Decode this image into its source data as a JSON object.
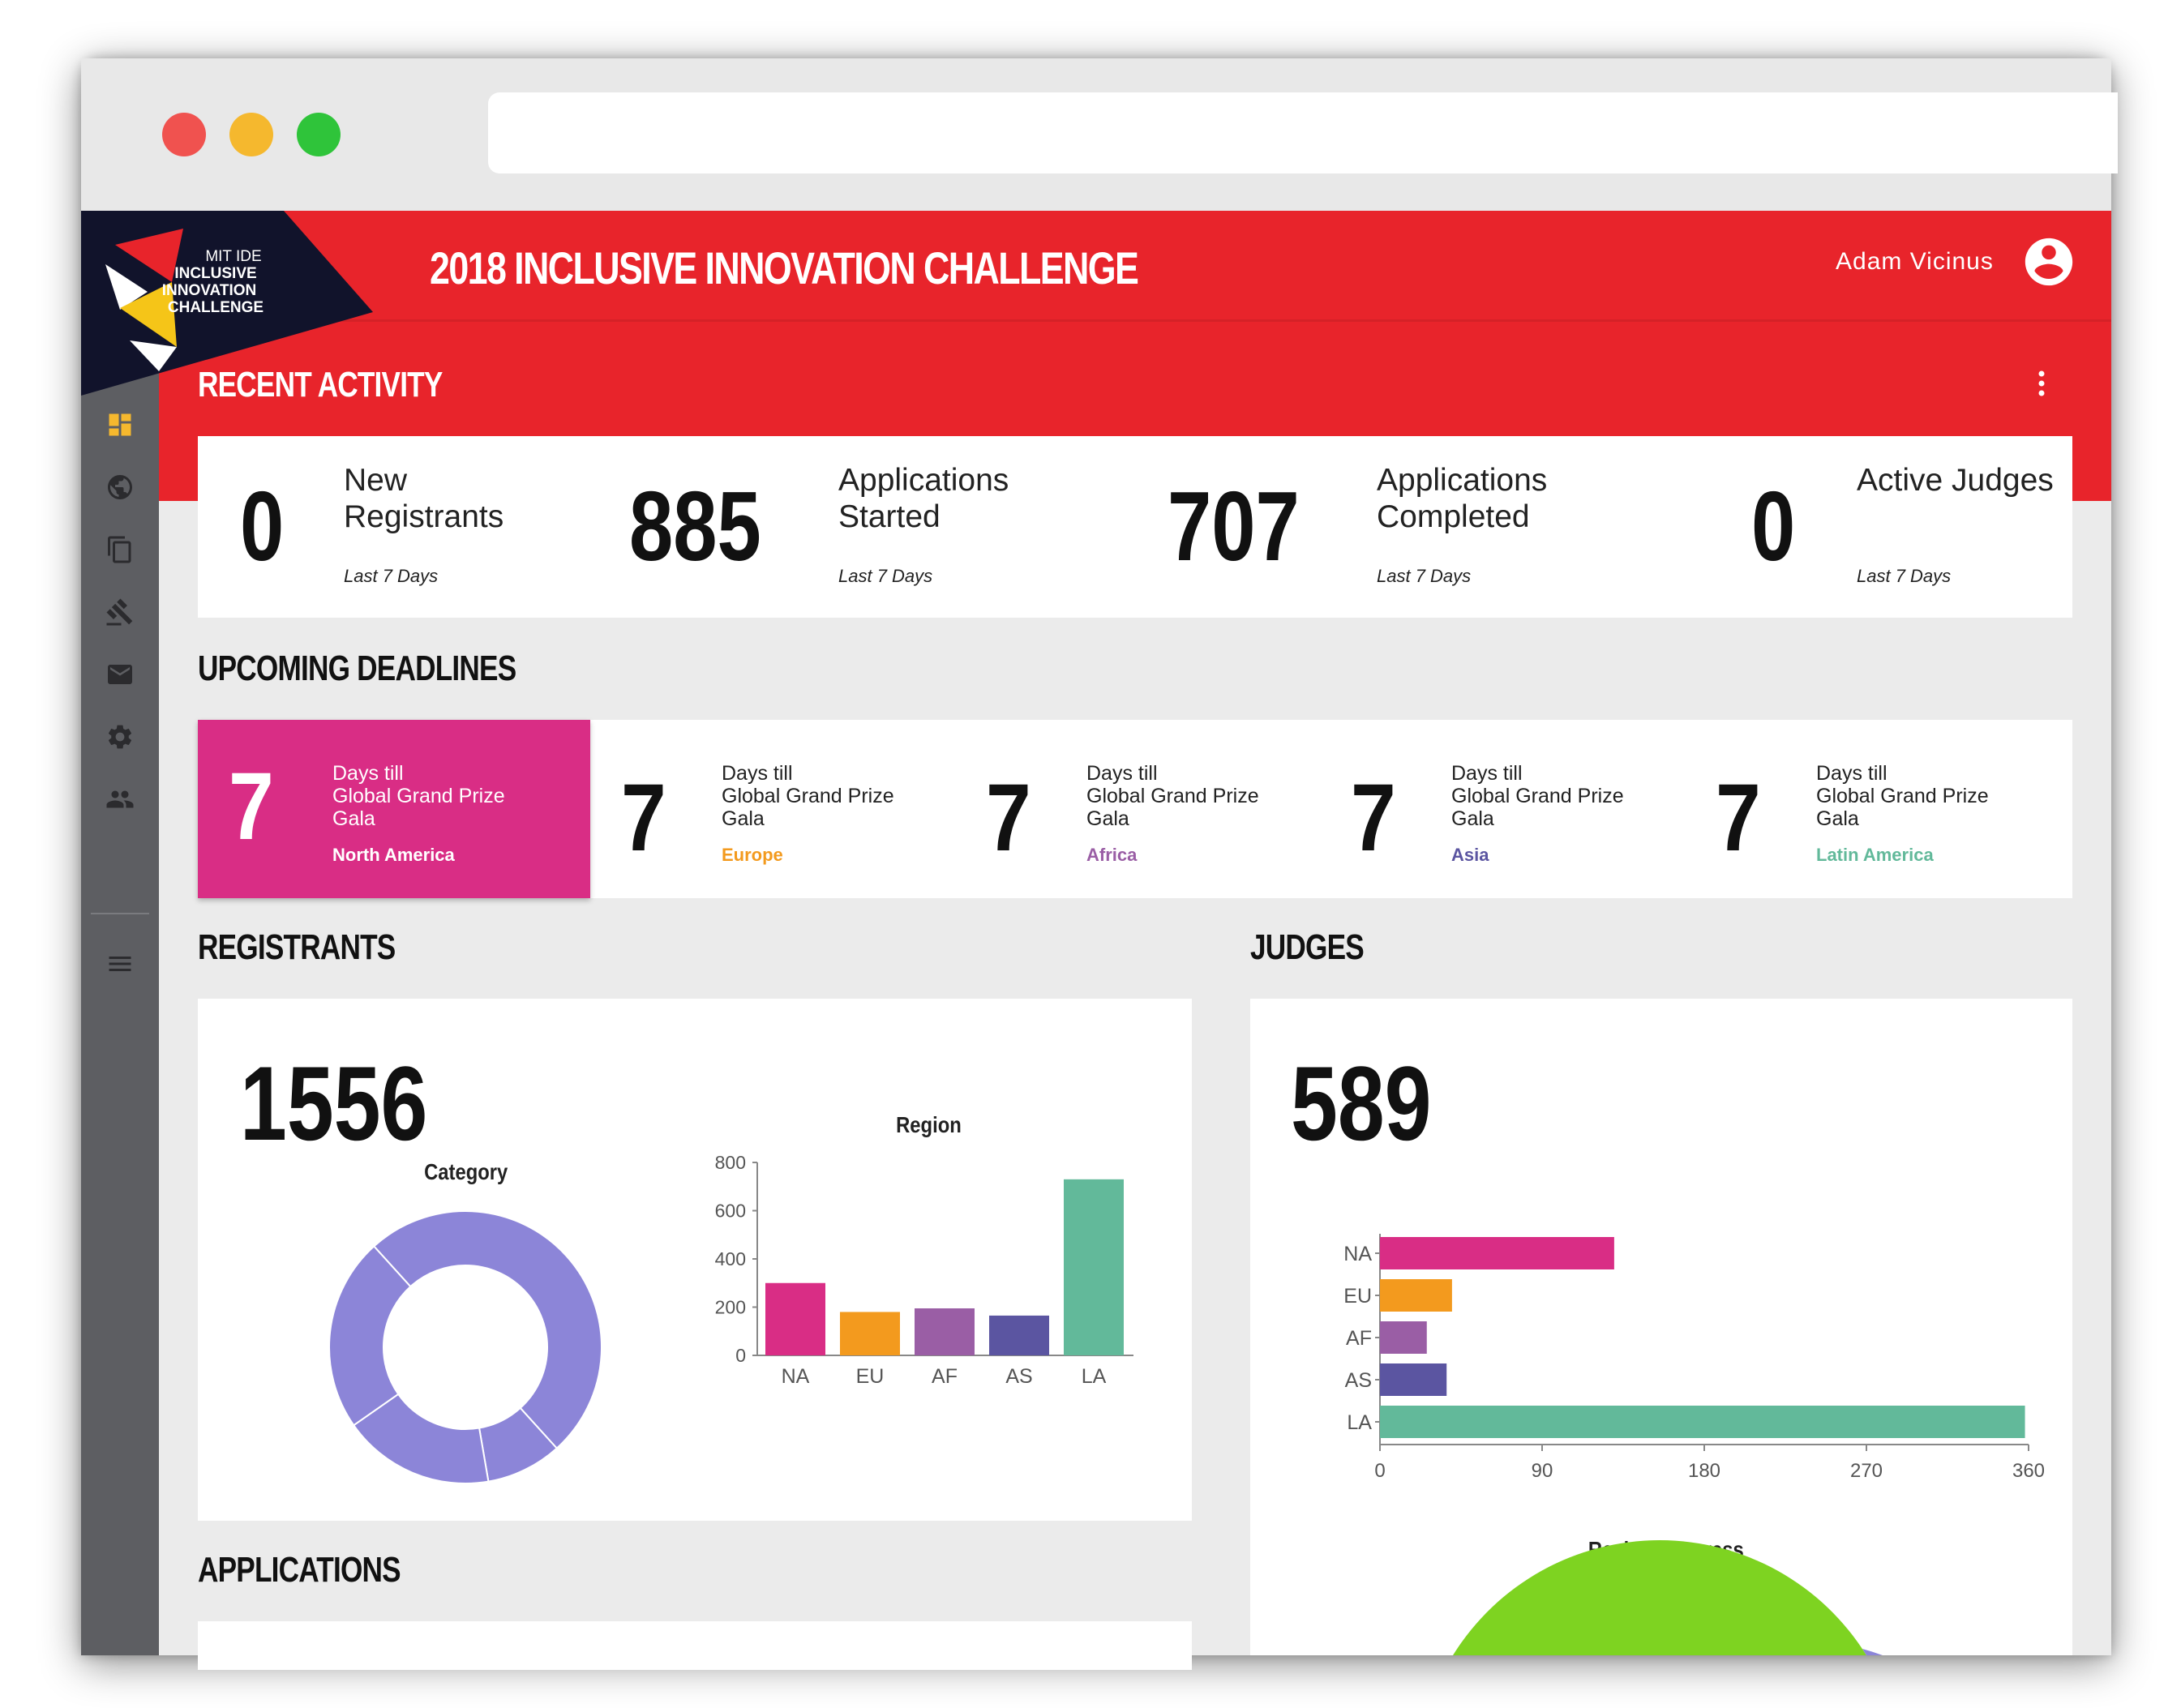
{
  "header": {
    "logo_lines": [
      "MIT IDE",
      "INCLUSIVE",
      "INNOVATION",
      "CHALLENGE"
    ],
    "title": "2018 INCLUSIVE INNOVATION CHALLENGE",
    "user_name": "Adam Vicinus",
    "avatar_icon": "account-circle-icon"
  },
  "window_controls": {
    "close_color": "#f0524f",
    "minimize_color": "#f5b82e",
    "maximize_color": "#2fc43a"
  },
  "sidebar": {
    "items": [
      {
        "name": "dashboard",
        "icon": "dashboard-icon",
        "active": true
      },
      {
        "name": "regions",
        "icon": "globe-icon"
      },
      {
        "name": "applications",
        "icon": "copy-icon"
      },
      {
        "name": "judging",
        "icon": "gavel-icon"
      },
      {
        "name": "messages",
        "icon": "mail-icon"
      },
      {
        "name": "settings",
        "icon": "gear-icon"
      },
      {
        "name": "people",
        "icon": "people-icon"
      },
      {
        "name": "menu",
        "icon": "menu-icon"
      }
    ]
  },
  "recent_activity": {
    "title": "RECENT ACTIVITY",
    "stats": [
      {
        "value": "0",
        "label": "New Registrants",
        "sub": "Last 7 Days"
      },
      {
        "value": "885",
        "label": "Applications Started",
        "sub": "Last 7 Days"
      },
      {
        "value": "707",
        "label": "Applications Completed",
        "sub": "Last 7 Days"
      },
      {
        "value": "0",
        "label": "Active Judges",
        "sub": "Last 7 Days"
      }
    ]
  },
  "upcoming_deadlines": {
    "title": "UPCOMING DEADLINES",
    "items": [
      {
        "days": "7",
        "line1": "Days till",
        "line2": "Global Grand Prize",
        "line3": "Gala",
        "region": "North America",
        "color": "#d92d85",
        "highlighted": true
      },
      {
        "days": "7",
        "line1": "Days till",
        "line2": "Global Grand Prize",
        "line3": "Gala",
        "region": "Europe",
        "color": "#f39a1e"
      },
      {
        "days": "7",
        "line1": "Days till",
        "line2": "Global Grand Prize",
        "line3": "Gala",
        "region": "Africa",
        "color": "#9a5ea5"
      },
      {
        "days": "7",
        "line1": "Days till",
        "line2": "Global Grand Prize",
        "line3": "Gala",
        "region": "Asia",
        "color": "#5b55a1"
      },
      {
        "days": "7",
        "line1": "Days till",
        "line2": "Global Grand Prize",
        "line3": "Gala",
        "region": "Latin America",
        "color": "#62b99a"
      }
    ]
  },
  "registrants": {
    "title": "REGISTRANTS",
    "total": "1556"
  },
  "judges": {
    "title": "JUDGES",
    "total": "589"
  },
  "applications": {
    "title": "APPLICATIONS"
  },
  "chart_data": [
    {
      "type": "pie",
      "variant": "donut",
      "title": "Category",
      "values": [
        50,
        9,
        18,
        23
      ],
      "colors": [
        "#8c85d8",
        "#8c85d8",
        "#8c85d8",
        "#8c85d8"
      ]
    },
    {
      "type": "bar",
      "title": "Region",
      "categories": [
        "NA",
        "EU",
        "AF",
        "AS",
        "LA"
      ],
      "values": [
        300,
        180,
        195,
        165,
        730
      ],
      "colors": [
        "#d92d85",
        "#f39a1e",
        "#9a5ea5",
        "#5b55a1",
        "#62b99a"
      ],
      "ylim": [
        0,
        800
      ],
      "yticks": [
        "0",
        "200",
        "400",
        "600",
        "800"
      ],
      "grid": false
    },
    {
      "type": "bar",
      "orientation": "horizontal",
      "categories": [
        "NA",
        "EU",
        "AF",
        "AS",
        "LA"
      ],
      "values": [
        130,
        40,
        26,
        37,
        358
      ],
      "colors": [
        "#d92d85",
        "#f39a1e",
        "#9a5ea5",
        "#5b55a1",
        "#62b99a"
      ],
      "xlim": [
        0,
        360
      ],
      "xticks": [
        "0",
        "90",
        "180",
        "270",
        "360"
      ],
      "grid": false
    },
    {
      "type": "pie",
      "title": "Review Progress",
      "colors": [
        "#7ed321",
        "#8c85d8"
      ],
      "partially_visible": true
    }
  ]
}
